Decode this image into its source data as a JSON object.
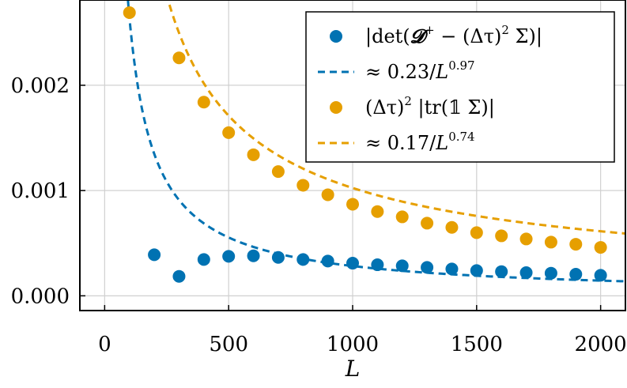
{
  "chart_data": {
    "type": "scatter",
    "xlabel": "L",
    "ylabel": "",
    "xlim": [
      -100,
      2100
    ],
    "ylim": [
      -0.00014,
      0.00281
    ],
    "x_ticks": [
      0,
      500,
      1000,
      1500,
      2000
    ],
    "x_tick_labels": [
      "0",
      "500",
      "1000",
      "1500",
      "2000"
    ],
    "y_ticks": [
      0.0,
      0.001,
      0.002
    ],
    "y_tick_labels": [
      "0.000",
      "0.001",
      "0.002"
    ],
    "grid": true,
    "legend_position": "top-right",
    "colors": {
      "blue": "#0072b2",
      "orange": "#e69f00"
    },
    "series": [
      {
        "name_parts": [
          "|det(",
          "𝓓",
          "+",
          " − (Δτ)",
          "2",
          " Σ)|"
        ],
        "kind": "points",
        "color": "#0072b2",
        "x": [
          200,
          300,
          400,
          500,
          600,
          700,
          800,
          900,
          1000,
          1100,
          1200,
          1300,
          1400,
          1500,
          1600,
          1700,
          1800,
          1900,
          2000
        ],
        "y": [
          0.00039,
          0.000185,
          0.000345,
          0.000375,
          0.00038,
          0.000365,
          0.000345,
          0.00033,
          0.00031,
          0.000295,
          0.000285,
          0.00027,
          0.000255,
          0.00024,
          0.00023,
          0.00022,
          0.000215,
          0.000205,
          0.000195
        ]
      },
      {
        "name_parts": [
          "≈ 0.23/",
          "L",
          "0.97"
        ],
        "kind": "fit",
        "color": "#0072b2",
        "coef": 0.23,
        "exponent": 0.97,
        "x_range": [
          90,
          2100
        ]
      },
      {
        "name_parts": [
          "(Δτ)",
          "2",
          " |tr(𝟙 Σ)|"
        ],
        "kind": "points",
        "color": "#e69f00",
        "x": [
          100,
          300,
          400,
          500,
          600,
          700,
          800,
          900,
          1000,
          1100,
          1200,
          1300,
          1400,
          1500,
          1600,
          1700,
          1800,
          1900,
          2000
        ],
        "y": [
          0.00269,
          0.00226,
          0.00184,
          0.00155,
          0.00134,
          0.00118,
          0.00105,
          0.00096,
          0.00087,
          0.0008,
          0.00075,
          0.00069,
          0.00065,
          0.0006,
          0.00057,
          0.00054,
          0.00051,
          0.00049,
          0.00046
        ]
      },
      {
        "name_parts": [
          "≈ 0.17/",
          "L",
          "0.74"
        ],
        "kind": "fit",
        "color": "#e69f00",
        "coef": 0.17,
        "exponent": 0.74,
        "x_range": [
          180,
          2100
        ]
      }
    ]
  }
}
